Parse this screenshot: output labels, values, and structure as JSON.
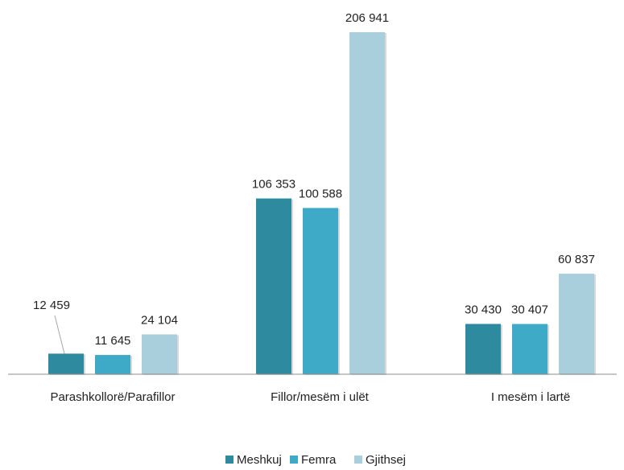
{
  "chart_data": {
    "type": "bar",
    "categories": [
      "Parashkollorë/Parafillor",
      "Fillor/mesëm i ulët",
      "I mesëm i lartë"
    ],
    "series": [
      {
        "name": "Meshkuj",
        "values": [
          12459,
          106353,
          30430
        ],
        "labels": [
          "12 459",
          "106 353",
          "30 430"
        ],
        "color": "#2e8a9e"
      },
      {
        "name": "Femra",
        "values": [
          11645,
          100588,
          30407
        ],
        "labels": [
          "11 645",
          "100 588",
          "30 407"
        ],
        "color": "#3eaac8"
      },
      {
        "name": "Gjithsej",
        "values": [
          24104,
          206941,
          60837
        ],
        "labels": [
          "24 104",
          "206 941",
          "60 837"
        ],
        "color": "#a9cfdc"
      }
    ],
    "title": "",
    "xlabel": "",
    "ylabel": "",
    "ylim": [
      0,
      206941
    ],
    "grid": false,
    "legend": "bottom"
  }
}
